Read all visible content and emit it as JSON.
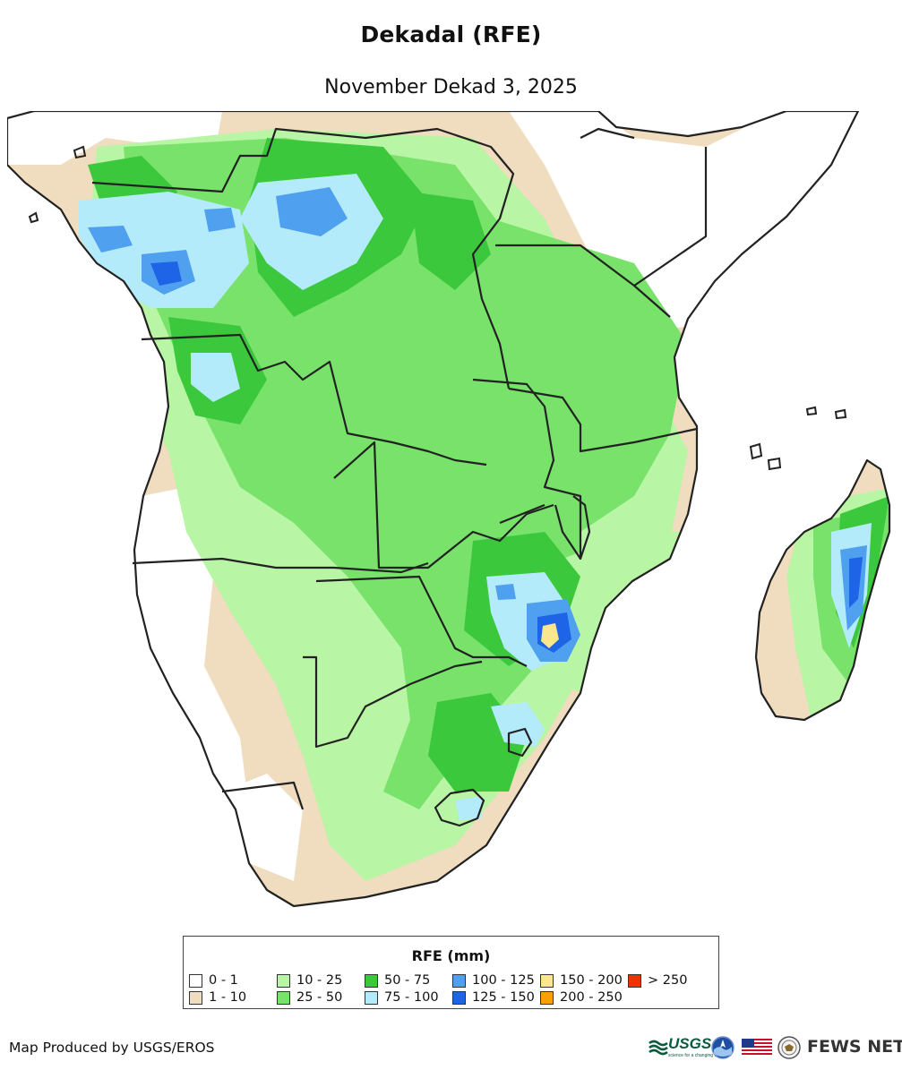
{
  "title": "Dekadal (RFE)",
  "subtitle": "November Dekad 3, 2025",
  "legend": {
    "title": "RFE (mm)",
    "items": [
      {
        "label": "0 - 1",
        "color": "#ffffff"
      },
      {
        "label": "1 - 10",
        "color": "#f0dcbe"
      },
      {
        "label": "10 - 25",
        "color": "#b8f5a5"
      },
      {
        "label": "25 - 50",
        "color": "#78e26a"
      },
      {
        "label": "50 - 75",
        "color": "#3cc83c"
      },
      {
        "label": "75 - 100",
        "color": "#b4ebfa"
      },
      {
        "label": "100 - 125",
        "color": "#50a0f0"
      },
      {
        "label": "125 - 150",
        "color": "#1e64e6"
      },
      {
        "label": "150 - 200",
        "color": "#fae68c"
      },
      {
        "label": "200 - 250",
        "color": "#faa000"
      },
      {
        "label": "> 250",
        "color": "#f03200"
      }
    ]
  },
  "credit": "Map Produced by USGS/EROS",
  "logos": {
    "usgs": "USGS",
    "usgs_tagline": "science for a changing world",
    "noaa": "noaa-logo",
    "flag": "us-flag-icon",
    "state": "state-department-seal",
    "fews": "FEWS NET"
  }
}
